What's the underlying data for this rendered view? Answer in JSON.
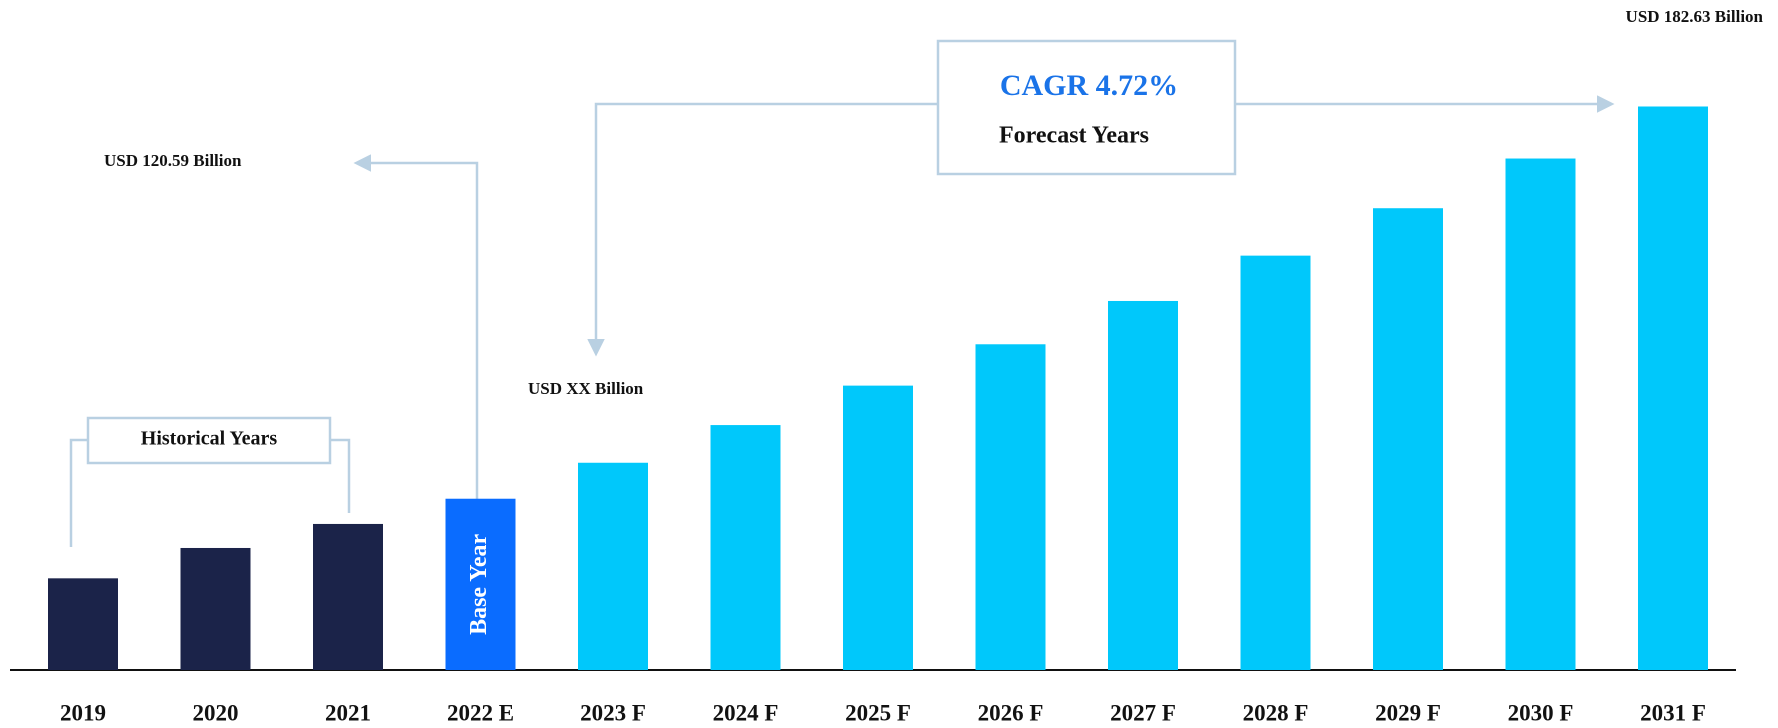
{
  "chart_data": {
    "type": "bar",
    "categories": [
      "2019",
      "2020",
      "2021",
      "2022 E",
      "2023 F",
      "2024 F",
      "2025 F",
      "2026 F",
      "2027 F",
      "2028 F",
      "2029 F",
      "2030 F",
      "2031 F"
    ],
    "values": [
      108.0,
      112.8,
      116.6,
      120.59,
      126.28,
      132.24,
      138.48,
      145.02,
      151.87,
      159.04,
      166.54,
      174.4,
      182.63
    ],
    "colors": [
      "#1b2349",
      "#1b2349",
      "#1b2349",
      "#0a6cff",
      "#00c8fb",
      "#00c8fb",
      "#00c8fb",
      "#00c8fb",
      "#00c8fb",
      "#00c8fb",
      "#00c8fb",
      "#00c8fb",
      "#00c8fb"
    ],
    "ylim": [
      93.5,
      199
    ],
    "bar_label": {
      "index": 3,
      "text": "Base Year"
    },
    "annotations": [
      {
        "text": "USD 182.63 Billion"
      },
      {
        "text": "USD 120.59 Billion"
      },
      {
        "text": "USD XX Billion"
      },
      {
        "text": "Historical Years"
      },
      {
        "text": "CAGR 4.72%",
        "color": "#1a73e8"
      },
      {
        "text": "Forecast Years"
      }
    ]
  }
}
